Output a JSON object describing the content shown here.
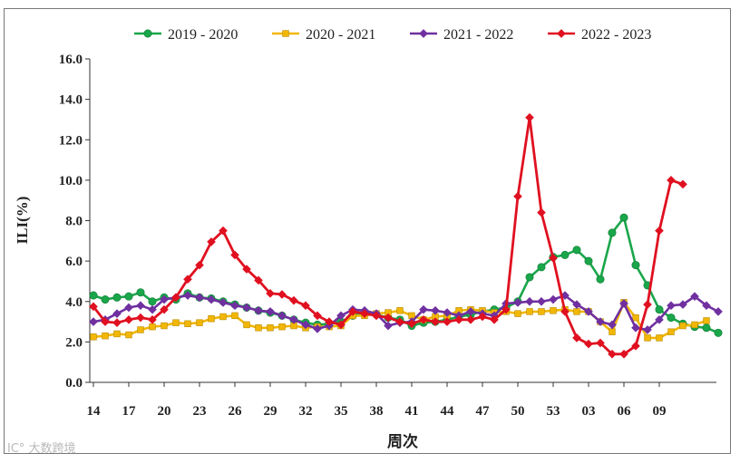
{
  "chart_data": {
    "type": "line",
    "title": "",
    "xlabel": "周次",
    "ylabel": "ILI(%)",
    "ylim": [
      0,
      16
    ],
    "ytick_labels": [
      "0.0",
      "2.0",
      "4.0",
      "6.0",
      "8.0",
      "10.0",
      "12.0",
      "14.0",
      "16.0"
    ],
    "ytick_values": [
      0,
      2,
      4,
      6,
      8,
      10,
      12,
      14,
      16
    ],
    "xtick_labels": [
      "14",
      "17",
      "20",
      "23",
      "26",
      "29",
      "32",
      "35",
      "38",
      "41",
      "44",
      "47",
      "50",
      "53",
      "03",
      "06",
      "09"
    ],
    "xtick_index": [
      0,
      3,
      6,
      9,
      12,
      15,
      18,
      21,
      24,
      27,
      30,
      33,
      36,
      39,
      42,
      45,
      48
    ],
    "legend_position": "top",
    "series": [
      {
        "name": "2019 - 2020",
        "color": "#1aa64a",
        "marker": "circle",
        "values": [
          4.3,
          4.1,
          4.2,
          4.25,
          4.45,
          4.0,
          4.2,
          4.1,
          4.4,
          4.2,
          4.15,
          4.0,
          3.85,
          3.7,
          3.55,
          3.45,
          3.3,
          3.1,
          2.95,
          2.85,
          2.9,
          3.0,
          3.3,
          3.45,
          3.35,
          3.2,
          3.1,
          2.8,
          2.95,
          3.0,
          3.1,
          3.25,
          3.35,
          3.5,
          3.6,
          3.7,
          4.0,
          5.2,
          5.7,
          6.2,
          6.3,
          6.55,
          6.0,
          5.1,
          7.4,
          8.15,
          5.8,
          4.8,
          3.6,
          3.2,
          2.9,
          2.75,
          2.7,
          2.45
        ]
      },
      {
        "name": "2020 - 2021",
        "color": "#f2b705",
        "marker": "square",
        "values": [
          2.25,
          2.3,
          2.4,
          2.35,
          2.6,
          2.75,
          2.8,
          2.95,
          2.9,
          2.95,
          3.15,
          3.25,
          3.3,
          2.85,
          2.7,
          2.7,
          2.75,
          2.8,
          2.7,
          2.75,
          2.75,
          2.8,
          3.3,
          3.3,
          3.4,
          3.45,
          3.55,
          3.3,
          3.1,
          3.25,
          3.3,
          3.55,
          3.6,
          3.55,
          3.45,
          3.5,
          3.4,
          3.5,
          3.5,
          3.55,
          3.6,
          3.5,
          3.5,
          3.0,
          2.5,
          3.95,
          3.2,
          2.2,
          2.2,
          2.5,
          2.8,
          2.85,
          3.05
        ]
      },
      {
        "name": "2021 - 2022",
        "color": "#7030a0",
        "marker": "diamond",
        "values": [
          3.0,
          3.1,
          3.4,
          3.7,
          3.8,
          3.6,
          4.1,
          4.2,
          4.3,
          4.2,
          4.1,
          3.95,
          3.8,
          3.7,
          3.55,
          3.5,
          3.3,
          3.1,
          2.85,
          2.65,
          2.8,
          3.3,
          3.6,
          3.55,
          3.4,
          2.8,
          2.95,
          3.0,
          3.6,
          3.55,
          3.45,
          3.3,
          3.5,
          3.4,
          3.3,
          3.9,
          3.95,
          4.0,
          4.0,
          4.1,
          4.3,
          3.85,
          3.5,
          3.0,
          2.85,
          3.9,
          2.7,
          2.6,
          3.1,
          3.8,
          3.85,
          4.25,
          3.8,
          3.5
        ]
      },
      {
        "name": "2022 - 2023",
        "color": "#e01020",
        "marker": "diamond",
        "values": [
          3.75,
          3.0,
          2.95,
          3.1,
          3.2,
          3.1,
          3.6,
          4.2,
          5.1,
          5.8,
          6.95,
          7.5,
          6.3,
          5.6,
          5.05,
          4.4,
          4.35,
          4.05,
          3.8,
          3.3,
          3.0,
          2.85,
          3.5,
          3.4,
          3.3,
          3.2,
          3.0,
          2.9,
          3.1,
          3.0,
          3.0,
          3.1,
          3.1,
          3.25,
          3.1,
          3.6,
          9.2,
          13.1,
          8.4,
          6.15,
          3.5,
          2.2,
          1.9,
          1.95,
          1.4,
          1.4,
          1.8,
          3.85,
          7.5,
          10.0,
          9.8
        ]
      }
    ]
  }
}
